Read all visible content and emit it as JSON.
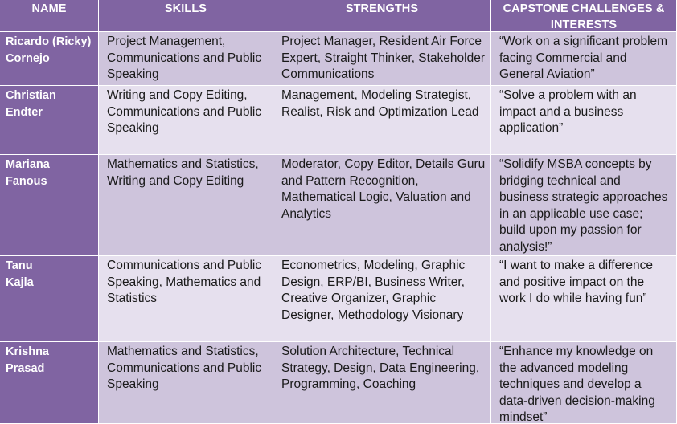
{
  "headers": {
    "name": "NAME",
    "skills": "SKILLS",
    "strengths": "STRENGTHS",
    "capstone": "CAPSTONE CHALLENGES & INTERESTS"
  },
  "rows": [
    {
      "name_line1": "Ricardo (Ricky)",
      "name_line2": "Cornejo",
      "skills": "Project Management, Communications and Public Speaking",
      "strengths": "Project Manager, Resident Air Force Expert, Straight Thinker, Stakeholder Communications",
      "capstone": "“Work on a significant problem facing Commercial and General Aviation”"
    },
    {
      "name_line1": "Christian",
      "name_line2": "Endter",
      "skills": "Writing and Copy Editing, Communications and Public Speaking",
      "strengths": "Management, Modeling Strategist, Realist, Risk and Optimization Lead",
      "capstone": "“Solve a problem with an impact and a business application”"
    },
    {
      "name_line1": "Mariana",
      "name_line2": "Fanous",
      "skills": "Mathematics and Statistics, Writing and Copy Editing",
      "strengths": "Moderator, Copy Editor, Details Guru and Pattern Recognition, Mathematical Logic, Valuation and Analytics",
      "capstone": "“Solidify MSBA concepts by bridging technical and business strategic approaches in an applicable use case; build upon my passion for analysis!”"
    },
    {
      "name_line1": "Tanu",
      "name_line2": "Kajla",
      "skills": "Communications and Public Speaking, Mathematics and Statistics",
      "strengths": "Econometrics, Modeling, Graphic Design, ERP/BI, Business Writer, Creative Organizer, Graphic Designer, Methodology Visionary",
      "capstone": "“I want to make a difference and positive impact on the work I do while having fun”"
    },
    {
      "name_line1": "Krishna",
      "name_line2": "Prasad",
      "skills": "Mathematics and Statistics, Communications and Public Speaking",
      "strengths": "Solution Architecture, Technical Strategy, Design, Data Engineering, Programming, Coaching",
      "capstone": "“Enhance my knowledge on the advanced modeling techniques and develop a data-driven decision-making mindset”"
    }
  ],
  "colors": {
    "header_bg": "#8064a2",
    "band_odd": "#cec4dc",
    "band_even": "#e6e0ee",
    "header_text": "#ffffff"
  }
}
